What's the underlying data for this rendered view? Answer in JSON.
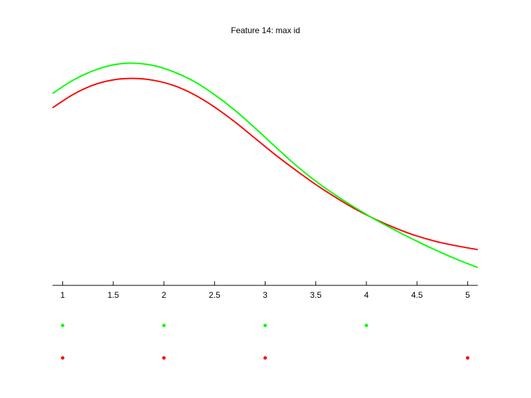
{
  "chart_data": {
    "type": "line",
    "title": "Feature 14: max id",
    "xlabel": "",
    "ylabel": "",
    "xlim": [
      0.9,
      5.1
    ],
    "xticks": [
      1,
      1.5,
      2,
      2.5,
      3,
      3.5,
      4,
      4.5,
      5
    ],
    "xtick_labels": [
      "1",
      "1.5",
      "2",
      "2.5",
      "3",
      "3.5",
      "4",
      "4.5",
      "5"
    ],
    "grid": false,
    "series": [
      {
        "color": "#00ff00",
        "x": [
          0.9,
          1.1,
          1.3,
          1.5,
          1.7,
          1.9,
          2.1,
          2.3,
          2.5,
          2.7,
          2.9,
          3.1,
          3.3,
          3.5,
          3.7,
          3.9,
          4.1,
          4.3,
          4.5,
          4.7,
          4.9,
          5.1
        ],
        "y": [
          0.805,
          0.86,
          0.9,
          0.925,
          0.932,
          0.922,
          0.895,
          0.855,
          0.8,
          0.735,
          0.66,
          0.582,
          0.505,
          0.437,
          0.377,
          0.323,
          0.273,
          0.228,
          0.185,
          0.145,
          0.108,
          0.075
        ],
        "points": [
          1,
          2,
          3,
          4
        ]
      },
      {
        "color": "#ff0000",
        "x": [
          0.9,
          1.1,
          1.3,
          1.5,
          1.7,
          1.9,
          2.1,
          2.3,
          2.5,
          2.7,
          2.9,
          3.1,
          3.3,
          3.5,
          3.7,
          3.9,
          4.1,
          4.3,
          4.5,
          4.7,
          4.9,
          5.1
        ],
        "y": [
          0.745,
          0.8,
          0.84,
          0.862,
          0.868,
          0.86,
          0.838,
          0.8,
          0.748,
          0.686,
          0.617,
          0.548,
          0.484,
          0.423,
          0.368,
          0.318,
          0.275,
          0.238,
          0.207,
          0.183,
          0.165,
          0.15
        ],
        "points": [
          1,
          2,
          3,
          5
        ]
      }
    ]
  }
}
